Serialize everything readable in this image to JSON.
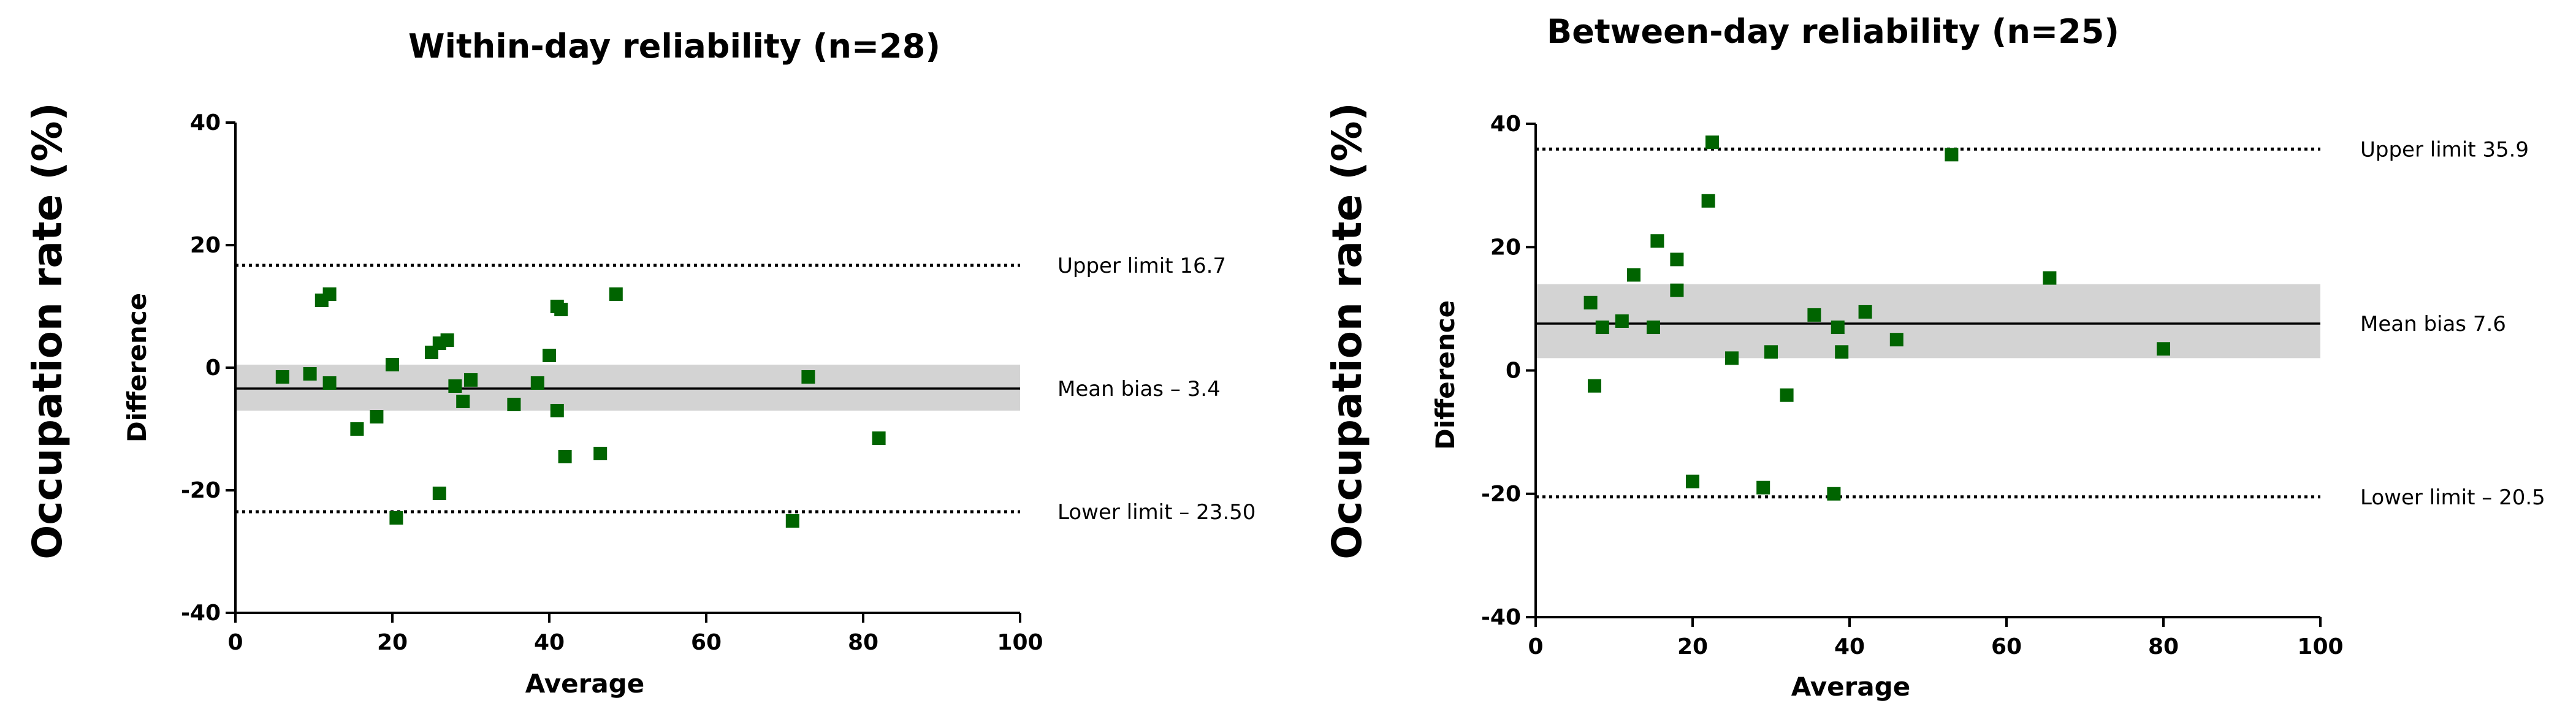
{
  "chart_data": [
    {
      "type": "scatter",
      "title": "Within-day reliability (n=28)",
      "outer_ylabel": "Occupation rate (%)",
      "xlabel": "Average",
      "ylabel": "Difference",
      "xlim": [
        0,
        100
      ],
      "ylim": [
        -40,
        40
      ],
      "xticks": [
        0,
        20,
        40,
        60,
        80,
        100
      ],
      "yticks": [
        -40,
        -20,
        0,
        20,
        40
      ],
      "tick_labels_x": [
        "0",
        "20",
        "40",
        "60",
        "80",
        "100"
      ],
      "tick_labels_y": [
        "-40",
        "-20",
        "0",
        "20",
        "40"
      ],
      "mean_bias": -3.4,
      "upper_limit": 16.7,
      "lower_limit": -23.5,
      "band": [
        -7,
        0.5
      ],
      "upper_label": "Upper limit  16.7",
      "mean_label": "Mean bias – 3.4",
      "lower_label": "Lower limit  – 23.50",
      "marker_color": "#006400",
      "band_color": "#d3d3d3",
      "points": [
        [
          6,
          -1.5
        ],
        [
          9.5,
          -1
        ],
        [
          11,
          11
        ],
        [
          12,
          12
        ],
        [
          12,
          -2.5
        ],
        [
          15.5,
          -10
        ],
        [
          18,
          -8
        ],
        [
          20,
          0.5
        ],
        [
          20.5,
          -24.5
        ],
        [
          25,
          2.5
        ],
        [
          26,
          4
        ],
        [
          26,
          -20.5
        ],
        [
          27,
          4.5
        ],
        [
          28,
          -3
        ],
        [
          29,
          -5.5
        ],
        [
          30,
          -2
        ],
        [
          35.5,
          -6
        ],
        [
          38.5,
          -2.5
        ],
        [
          40,
          2
        ],
        [
          41,
          -7
        ],
        [
          41,
          10
        ],
        [
          42,
          -14.5
        ],
        [
          46.5,
          -14
        ],
        [
          48.5,
          12
        ],
        [
          71,
          -25
        ],
        [
          73,
          -1.5
        ],
        [
          82,
          -11.5
        ],
        [
          41.5,
          9.5
        ]
      ]
    },
    {
      "type": "scatter",
      "title": "Between-day reliability (n=25)",
      "outer_ylabel": "Occupation rate (%)",
      "xlabel": "Average",
      "ylabel": "Difference",
      "xlim": [
        0,
        100
      ],
      "ylim": [
        -40,
        40
      ],
      "xticks": [
        0,
        20,
        40,
        60,
        80,
        100
      ],
      "yticks": [
        -40,
        -20,
        0,
        20,
        40
      ],
      "tick_labels_x": [
        "0",
        "20",
        "40",
        "60",
        "80",
        "100"
      ],
      "tick_labels_y": [
        "-40",
        "-20",
        "0",
        "20",
        "40"
      ],
      "mean_bias": 7.6,
      "upper_limit": 35.9,
      "lower_limit": -20.5,
      "band": [
        2,
        14
      ],
      "upper_label": "Upper limit  35.9",
      "mean_label": "Mean bias  7.6",
      "lower_label": "Lower limit  – 20.5",
      "marker_color": "#006400",
      "band_color": "#d3d3d3",
      "points": [
        [
          7,
          11
        ],
        [
          7.5,
          -2.5
        ],
        [
          8.5,
          7
        ],
        [
          11,
          8
        ],
        [
          12.5,
          15.5
        ],
        [
          15,
          7
        ],
        [
          15.5,
          21
        ],
        [
          18,
          18
        ],
        [
          18,
          13
        ],
        [
          20,
          -18
        ],
        [
          22,
          27.5
        ],
        [
          22.5,
          37
        ],
        [
          25,
          2
        ],
        [
          29,
          -19
        ],
        [
          30,
          3
        ],
        [
          32,
          -4
        ],
        [
          35.5,
          9
        ],
        [
          38,
          -20
        ],
        [
          38.5,
          7
        ],
        [
          39,
          3
        ],
        [
          42,
          9.5
        ],
        [
          46,
          5
        ],
        [
          53,
          35
        ],
        [
          65.5,
          15
        ],
        [
          80,
          3.5
        ]
      ]
    }
  ]
}
